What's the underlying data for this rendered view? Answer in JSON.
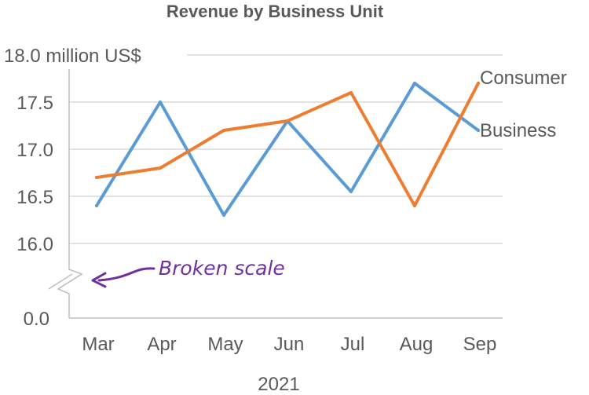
{
  "chart_data": {
    "type": "line",
    "title": "Revenue by Business Unit",
    "xlabel": "2021",
    "ylabel": "million US$",
    "categories": [
      "Mar",
      "Apr",
      "May",
      "Jun",
      "Jul",
      "Aug",
      "Sep"
    ],
    "ylim": [
      16.0,
      18.0
    ],
    "y_ticks": [
      "18.0 million US$",
      "17.5",
      "17.0",
      "16.5",
      "16.0"
    ],
    "y_tick_values": [
      18.0,
      17.5,
      17.0,
      16.5,
      16.0
    ],
    "baseline_tick": "0.0",
    "grid": true,
    "series": [
      {
        "name": "Business",
        "color": "#5b9bd5",
        "values": [
          16.4,
          17.5,
          16.3,
          17.3,
          16.55,
          17.7,
          17.2
        ]
      },
      {
        "name": "Consumer",
        "color": "#ed7d31",
        "values": [
          16.7,
          16.8,
          17.2,
          17.3,
          17.6,
          16.4,
          17.7
        ]
      }
    ],
    "annotation": {
      "text": "Broken scale",
      "color": "#7030a0"
    }
  }
}
